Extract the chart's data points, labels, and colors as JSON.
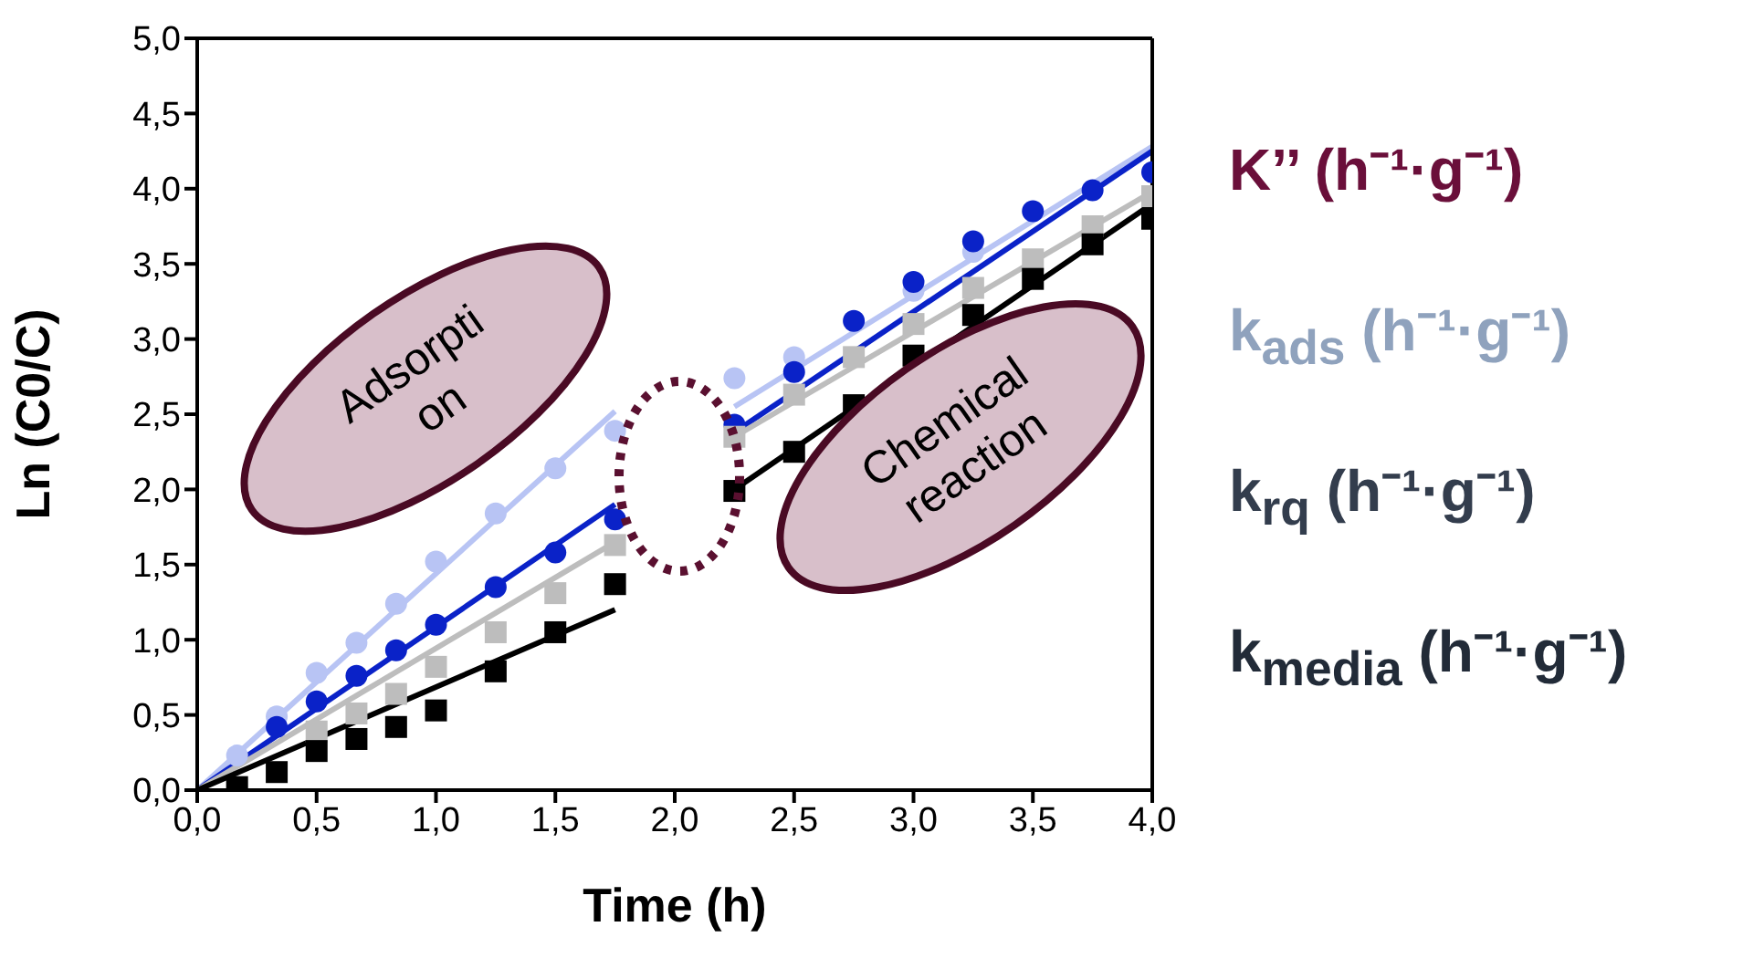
{
  "chart_data": {
    "type": "scatter",
    "xlabel": "Time (h)",
    "ylabel": "Ln (C0/C)",
    "xlim": [
      0,
      4
    ],
    "xticks": [
      {
        "value": 0,
        "label": "0,0"
      },
      {
        "value": 0.5,
        "label": "0,5"
      },
      {
        "value": 1,
        "label": "1,0"
      },
      {
        "value": 1.5,
        "label": "1,5"
      },
      {
        "value": 2,
        "label": "2,0"
      },
      {
        "value": 2.5,
        "label": "2,5"
      },
      {
        "value": 3,
        "label": "3,0"
      },
      {
        "value": 3.5,
        "label": "3,5"
      },
      {
        "value": 4,
        "label": "4,0"
      }
    ],
    "ylim": [
      0,
      5
    ],
    "yticks": [
      {
        "value": 0,
        "label": "0,0"
      },
      {
        "value": 0.5,
        "label": "0,5"
      },
      {
        "value": 1,
        "label": "1,0"
      },
      {
        "value": 1.5,
        "label": "1,5"
      },
      {
        "value": 2,
        "label": "2,0"
      },
      {
        "value": 2.5,
        "label": "2,5"
      },
      {
        "value": 3,
        "label": "3,0"
      },
      {
        "value": 3.5,
        "label": "3,5"
      },
      {
        "value": 4,
        "label": "4,0"
      },
      {
        "value": 4.5,
        "label": "4,5"
      },
      {
        "value": 5,
        "label": "5,0"
      }
    ],
    "x": [
      0.167,
      0.333,
      0.5,
      0.667,
      0.833,
      1,
      1.25,
      1.5,
      1.75,
      2.25,
      2.5,
      2.75,
      3,
      3.25,
      3.5,
      3.75,
      4
    ],
    "series": [
      {
        "color": "#b8c4f4",
        "marker": "circle",
        "values": [
          0.23,
          0.49,
          0.78,
          0.98,
          1.24,
          1.52,
          1.84,
          2.14,
          2.39,
          2.74,
          2.88,
          null,
          3.32,
          3.58,
          null,
          null,
          null
        ]
      },
      {
        "color": "#0a22c8",
        "marker": "circle",
        "values": [
          null,
          0.42,
          0.59,
          0.76,
          0.93,
          1.1,
          1.35,
          1.58,
          1.8,
          2.43,
          2.78,
          3.12,
          3.38,
          3.65,
          3.85,
          3.99,
          4.11
        ]
      },
      {
        "color": "#bdbdbd",
        "marker": "square",
        "values": [
          null,
          null,
          0.39,
          0.51,
          0.64,
          0.82,
          1.05,
          1.31,
          1.63,
          2.35,
          2.63,
          2.88,
          3.1,
          3.34,
          3.53,
          3.75,
          3.95
        ]
      },
      {
        "color": "#000000",
        "marker": "square",
        "values": [
          0.02,
          0.12,
          0.26,
          0.34,
          0.42,
          0.53,
          0.79,
          1.05,
          1.37,
          1.99,
          2.25,
          2.56,
          2.89,
          3.16,
          3.4,
          3.63,
          3.8
        ]
      },
      {
        "type": "line",
        "color": "#b8c4f4",
        "marker": "none",
        "x": [
          0,
          1.75
        ],
        "values": [
          0,
          2.52
        ]
      },
      {
        "type": "line",
        "color": "#0a22c8",
        "marker": "none",
        "x": [
          0,
          1.75
        ],
        "values": [
          0,
          1.9
        ]
      },
      {
        "type": "line",
        "color": "#bdbdbd",
        "marker": "none",
        "x": [
          0,
          1.75
        ],
        "values": [
          0,
          1.65
        ]
      },
      {
        "type": "line",
        "color": "#000000",
        "marker": "none",
        "x": [
          0,
          1.75
        ],
        "values": [
          0,
          1.2
        ]
      },
      {
        "type": "line",
        "color": "#b8c4f4",
        "marker": "none",
        "x": [
          2.25,
          4
        ],
        "values": [
          2.55,
          4.28
        ]
      },
      {
        "type": "line",
        "color": "#0a22c8",
        "marker": "none",
        "x": [
          2.25,
          4
        ],
        "values": [
          2.38,
          4.25
        ]
      },
      {
        "type": "line",
        "color": "#bdbdbd",
        "marker": "none",
        "x": [
          2.25,
          4
        ],
        "values": [
          2.35,
          3.98
        ]
      },
      {
        "type": "line",
        "color": "#000000",
        "marker": "none",
        "x": [
          2.25,
          4
        ],
        "values": [
          2.0,
          3.9
        ]
      }
    ],
    "annotations": [
      "Adsorpti on",
      "Chemical reaction",
      "K’’ (h⁻¹·g⁻¹)",
      "k$_{ads}$ (h⁻¹·g⁻¹)",
      "k$_{rq}$ (h⁻¹·g⁻¹)",
      "k$_{media}$ (h⁻¹·g⁻¹)"
    ]
  }
}
